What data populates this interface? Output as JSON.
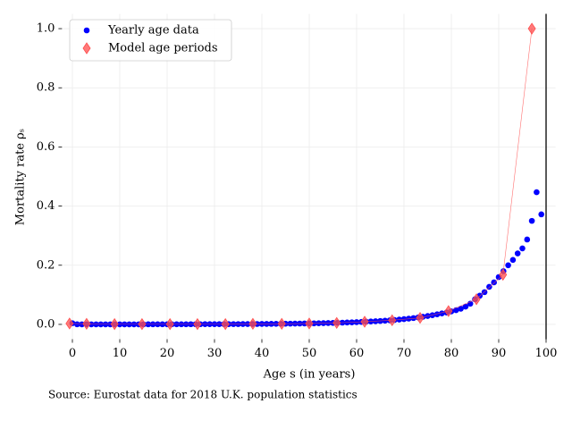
{
  "chart_data": {
    "type": "scatter",
    "xlabel": "Age s (in years)",
    "ylabel": "Mortality rate ρₛ",
    "source": "Source: Eurostat data for 2018 U.K. population statistics",
    "xlim": [
      -2,
      102
    ],
    "ylim": [
      -0.05,
      1.05
    ],
    "xticks": [
      0,
      10,
      20,
      30,
      40,
      50,
      60,
      70,
      80,
      90,
      100
    ],
    "yticks": [
      {
        "value": 0,
        "label": "0.0"
      },
      {
        "value": 0.2,
        "label": "0.2"
      },
      {
        "value": 0.4,
        "label": "0.4"
      },
      {
        "value": 0.6,
        "label": "0.6"
      },
      {
        "value": 0.8,
        "label": "0.8"
      },
      {
        "value": 1,
        "label": "1.0"
      }
    ],
    "grid": true,
    "legend": "upper left",
    "vline": 100,
    "series": [
      {
        "name": "Yearly age data",
        "color": "#0000ff",
        "marker": "circle",
        "x": [
          0,
          1,
          2,
          3,
          4,
          5,
          6,
          7,
          8,
          9,
          10,
          11,
          12,
          13,
          14,
          15,
          16,
          17,
          18,
          19,
          20,
          21,
          22,
          23,
          24,
          25,
          26,
          27,
          28,
          29,
          30,
          31,
          32,
          33,
          34,
          35,
          36,
          37,
          38,
          39,
          40,
          41,
          42,
          43,
          44,
          45,
          46,
          47,
          48,
          49,
          50,
          51,
          52,
          53,
          54,
          55,
          56,
          57,
          58,
          59,
          60,
          61,
          62,
          63,
          64,
          65,
          66,
          67,
          68,
          69,
          70,
          71,
          72,
          73,
          74,
          75,
          76,
          77,
          78,
          79,
          80,
          81,
          82,
          83,
          84,
          85,
          86,
          87,
          88,
          89,
          90,
          91,
          92,
          93,
          94,
          95,
          96,
          97,
          98,
          99
        ],
        "values": [
          0.004,
          0.0003,
          0.0002,
          0.0001,
          0.0001,
          0.0001,
          0.0001,
          0.0001,
          0.0001,
          0.0001,
          0.0001,
          0.0001,
          0.0001,
          0.0001,
          0.0002,
          0.0002,
          0.0003,
          0.0003,
          0.0004,
          0.0004,
          0.0004,
          0.0005,
          0.0005,
          0.0005,
          0.0005,
          0.0006,
          0.0006,
          0.0006,
          0.0007,
          0.0007,
          0.0008,
          0.0008,
          0.0009,
          0.0009,
          0.001,
          0.001,
          0.0011,
          0.0012,
          0.0013,
          0.0014,
          0.0015,
          0.0016,
          0.0018,
          0.0019,
          0.0021,
          0.0023,
          0.0025,
          0.0027,
          0.0029,
          0.0031,
          0.0033,
          0.0036,
          0.0039,
          0.0042,
          0.0046,
          0.005,
          0.0054,
          0.0059,
          0.0064,
          0.007,
          0.0076,
          0.0083,
          0.009,
          0.0098,
          0.0107,
          0.0116,
          0.0126,
          0.0137,
          0.0149,
          0.0163,
          0.0178,
          0.0195,
          0.0214,
          0.0235,
          0.0258,
          0.0283,
          0.031,
          0.034,
          0.037,
          0.04,
          0.044,
          0.048,
          0.053,
          0.06,
          0.07,
          0.085,
          0.097,
          0.109,
          0.127,
          0.142,
          0.16,
          0.18,
          0.2,
          0.218,
          0.24,
          0.257,
          0.287,
          0.35,
          0.447,
          0.372
        ]
      },
      {
        "name": "Model age periods",
        "color": "#ff4d4d",
        "marker": "diamond",
        "line": true,
        "x": [
          -0.6,
          3,
          8.9,
          14.7,
          20.6,
          26.4,
          32.3,
          38.1,
          44.2,
          50,
          55.8,
          61.7,
          67.5,
          73.4,
          79.4,
          85.3,
          90.9,
          97
        ],
        "values": [
          0.003,
          0.002,
          0.001,
          0.001,
          0.001,
          0.001,
          0.001,
          0.002,
          0.002,
          0.003,
          0.005,
          0.009,
          0.014,
          0.022,
          0.045,
          0.085,
          0.168,
          1.0
        ]
      }
    ]
  }
}
